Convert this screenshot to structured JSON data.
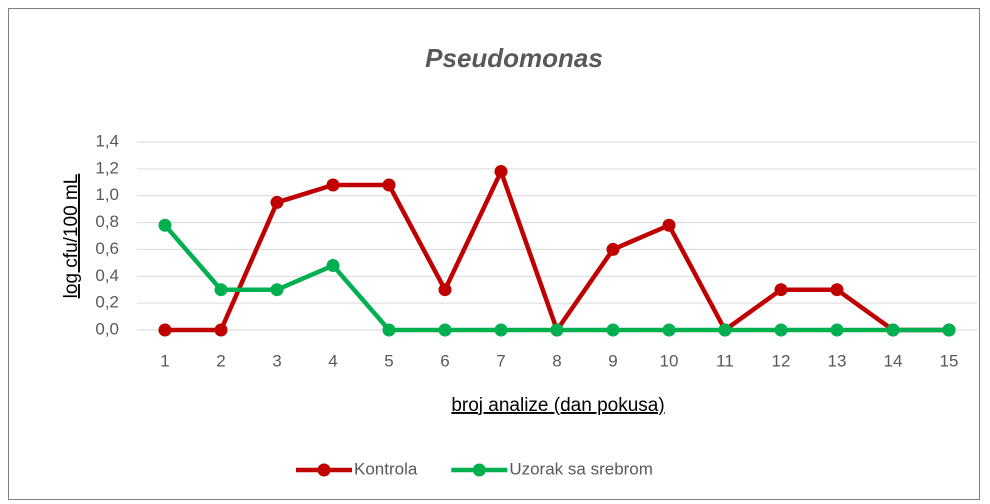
{
  "chart_data": {
    "type": "line",
    "title": "Pseudomonas",
    "x_label": "broj analize (dan pokusa)",
    "y_label": "log cfu/100 mL",
    "categories": [
      "1",
      "2",
      "3",
      "4",
      "5",
      "6",
      "7",
      "8",
      "9",
      "10",
      "11",
      "12",
      "13",
      "14",
      "15"
    ],
    "series": [
      {
        "name": "Kontrola",
        "color": "#c00000",
        "values": [
          0,
          0,
          0.95,
          1.08,
          1.08,
          0.3,
          1.18,
          0,
          0.6,
          0.78,
          0,
          0.3,
          0.3,
          0,
          0
        ]
      },
      {
        "name": "Uzorak sa srebrom",
        "color": "#00b050",
        "values": [
          0.78,
          0.3,
          0.3,
          0.48,
          0,
          0,
          0,
          0,
          0,
          0,
          0,
          0,
          0,
          0,
          0
        ]
      }
    ],
    "ylim": [
      0,
      1.4
    ],
    "yticks": [
      {
        "value": 0,
        "label": "0,0"
      },
      {
        "value": 0.2,
        "label": "0,2"
      },
      {
        "value": 0.4,
        "label": "0,4"
      },
      {
        "value": 0.6,
        "label": "0,6"
      },
      {
        "value": 0.8,
        "label": "0,8"
      },
      {
        "value": 1.0,
        "label": "1,0"
      },
      {
        "value": 1.2,
        "label": "1,2"
      },
      {
        "value": 1.4,
        "label": "1,4"
      }
    ],
    "grid": true,
    "legend": "bottom"
  }
}
